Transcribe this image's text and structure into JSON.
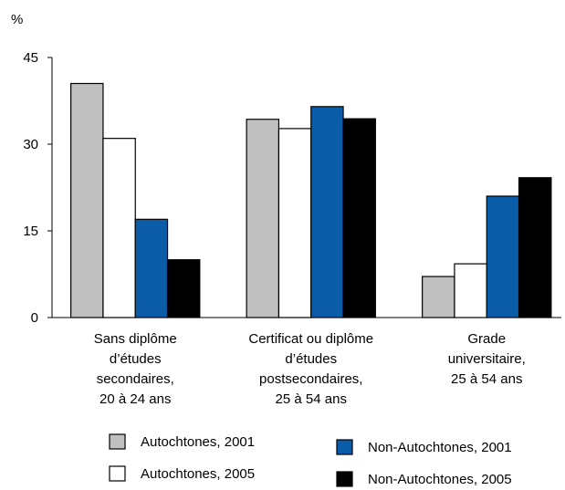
{
  "chart_data": {
    "type": "bar",
    "y_label": "%",
    "categories": [
      [
        "Sans diplôme",
        "d’études",
        "secondaires,",
        "20 à 24 ans"
      ],
      [
        "Certificat ou diplôme",
        "d’études",
        "postsecondaires,",
        "25 à 54 ans"
      ],
      [
        "Grade",
        "universitaire,",
        "25 à 54 ans"
      ]
    ],
    "series": [
      {
        "name": "Autochtones, 2001",
        "color": "#c0c0c0",
        "values": [
          40.5,
          34.3,
          7.1
        ]
      },
      {
        "name": "Autochtones, 2005",
        "color": "#ffffff",
        "values": [
          31,
          32.7,
          9.3
        ]
      },
      {
        "name": "Non-Autochtones, 2001",
        "color": "#0a5ca8",
        "values": [
          17,
          36.5,
          21
        ]
      },
      {
        "name": "Non-Autochtones, 2005",
        "color": "#000000",
        "values": [
          10,
          34.4,
          24.2
        ]
      }
    ],
    "ylim": [
      0,
      45
    ],
    "yticks": [
      0,
      15,
      30,
      45
    ]
  }
}
